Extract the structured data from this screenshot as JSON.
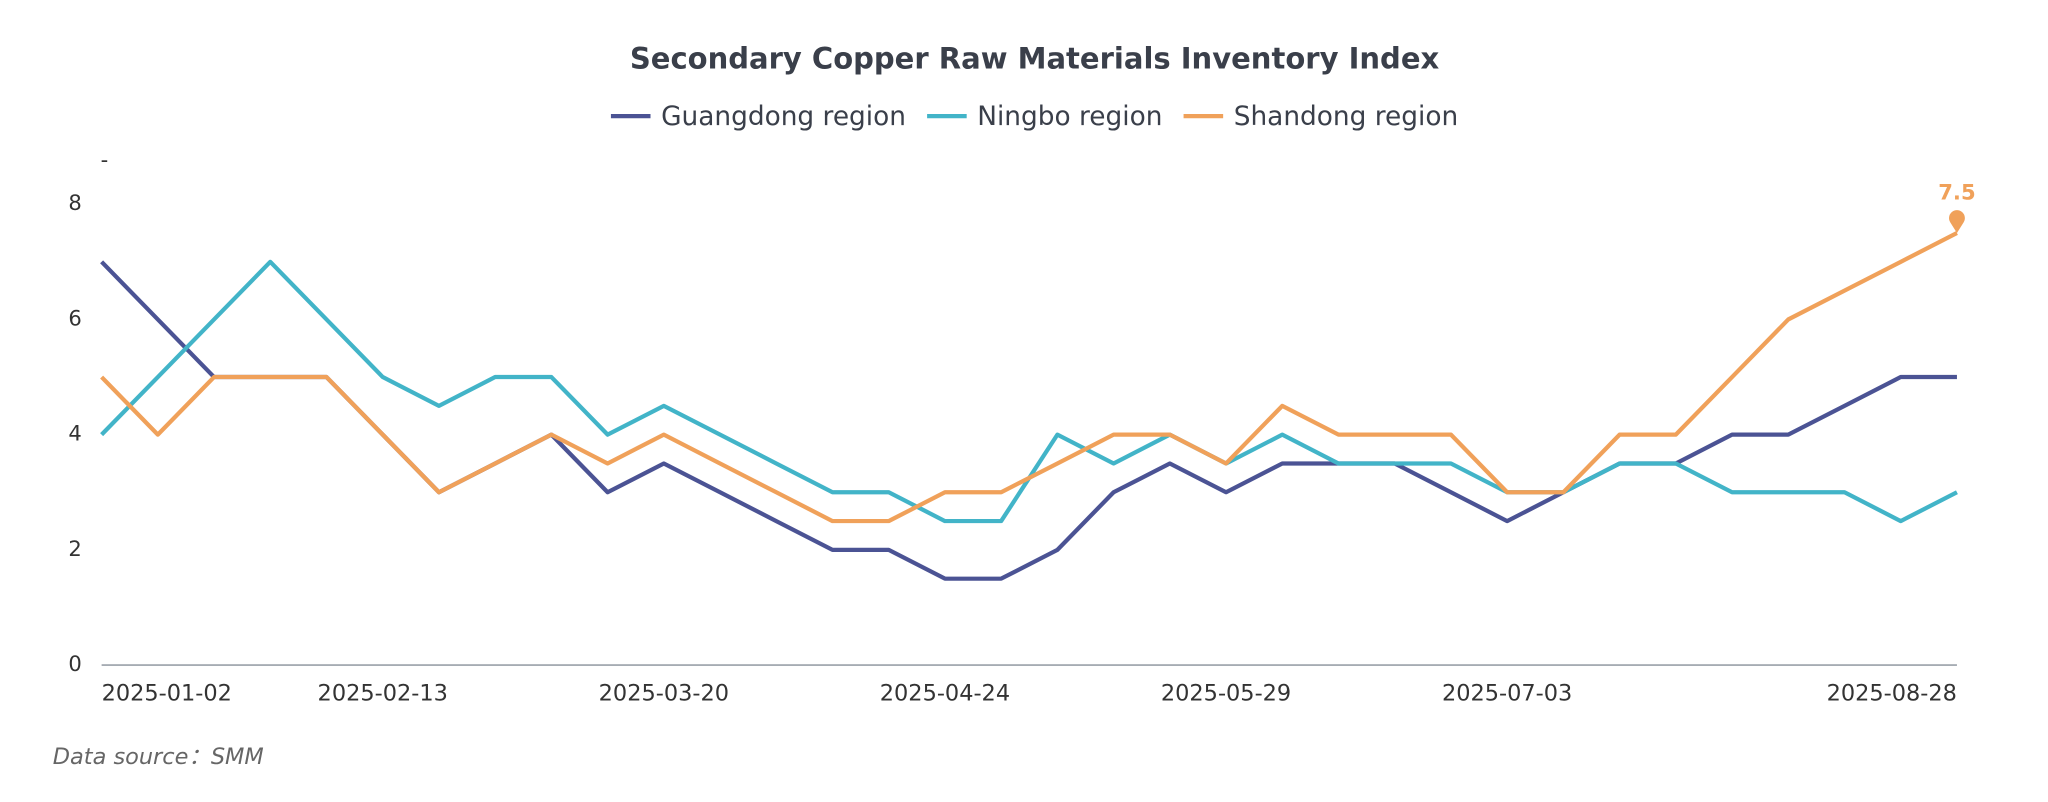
{
  "chart_data": {
    "type": "line",
    "title": "Secondary Copper Raw Materials Inventory Index",
    "source": "Data source：SMM",
    "categories": [
      "2025-01-02",
      null,
      null,
      null,
      null,
      "2025-02-13",
      null,
      null,
      null,
      null,
      "2025-03-20",
      null,
      null,
      null,
      null,
      "2025-04-24",
      null,
      null,
      null,
      null,
      "2025-05-29",
      null,
      null,
      null,
      null,
      "2025-07-03",
      null,
      null,
      null,
      null,
      null,
      null,
      null,
      "2025-08-28"
    ],
    "series": [
      {
        "name": "Guangdong region",
        "color": "#4b5394",
        "values": [
          7,
          6,
          5,
          5,
          5,
          4,
          3,
          3.5,
          4,
          3,
          3.5,
          3,
          2.5,
          2,
          2,
          1.5,
          1.5,
          2,
          3,
          3.5,
          3,
          3.5,
          3.5,
          3.5,
          3,
          2.5,
          3,
          3.5,
          3.5,
          4,
          4,
          4.5,
          5,
          5
        ]
      },
      {
        "name": "Ningbo region",
        "color": "#42b4c8",
        "values": [
          4,
          5,
          6,
          7,
          6,
          5,
          4.5,
          5,
          5,
          4,
          4.5,
          4,
          3.5,
          3,
          3,
          2.5,
          2.5,
          4,
          3.5,
          4,
          3.5,
          4,
          3.5,
          3.5,
          3.5,
          3,
          3,
          3.5,
          3.5,
          3,
          3,
          3,
          2.5,
          3
        ]
      },
      {
        "name": "Shandong region",
        "color": "#f0a15a",
        "values": [
          5,
          4,
          5,
          5,
          5,
          4,
          3,
          3.5,
          4,
          3.5,
          4,
          3.5,
          3,
          2.5,
          2.5,
          3,
          3,
          3.5,
          4,
          4,
          3.5,
          4.5,
          4,
          4,
          4,
          3,
          3,
          4,
          4,
          5,
          6,
          6.5,
          7,
          7.5
        ]
      }
    ],
    "ylim": [
      0,
      8.75
    ],
    "yticks": [
      0,
      2,
      4,
      6,
      8,
      {
        "value": 8.75,
        "label": "-"
      }
    ],
    "grid": false,
    "legend": "top"
  }
}
